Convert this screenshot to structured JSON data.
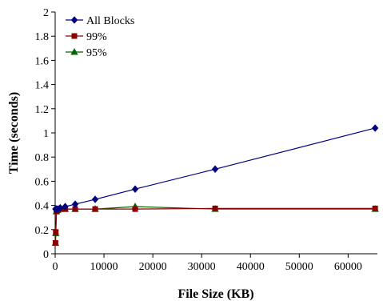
{
  "chart_data": {
    "type": "line",
    "xlabel": "File Size (KB)",
    "ylabel": "Time (seconds)",
    "xlim": [
      0,
      66000
    ],
    "ylim": [
      0,
      2
    ],
    "xticks": [
      "0",
      "10000",
      "20000",
      "30000",
      "40000",
      "50000",
      "60000"
    ],
    "xtick_values": [
      0,
      10000,
      20000,
      30000,
      40000,
      50000,
      60000
    ],
    "yticks": [
      "0",
      "0.2",
      "0.4",
      "0.6",
      "0.8",
      "1",
      "1.2",
      "1.4",
      "1.6",
      "1.8",
      "2"
    ],
    "ytick_values": [
      0,
      0.2,
      0.4,
      0.6,
      0.8,
      1.0,
      1.2,
      1.4,
      1.6,
      1.8,
      2.0
    ],
    "grid": false,
    "legend_position": "top-left",
    "series": [
      {
        "name": "All Blocks",
        "color": "#000080",
        "marker": "diamond",
        "x": [
          64,
          128,
          256,
          512,
          1024,
          2048,
          4096,
          8192,
          16384,
          32768,
          65536
        ],
        "y": [
          0.37,
          0.37,
          0.37,
          0.37,
          0.38,
          0.39,
          0.41,
          0.45,
          0.535,
          0.7,
          1.04
        ]
      },
      {
        "name": "99%",
        "color": "#8B0000",
        "marker": "square",
        "x": [
          64,
          128,
          256,
          512,
          1024,
          2048,
          4096,
          8192,
          16384,
          32768,
          65536
        ],
        "y": [
          0.09,
          0.18,
          0.35,
          0.37,
          0.37,
          0.37,
          0.37,
          0.37,
          0.37,
          0.375,
          0.375
        ]
      },
      {
        "name": "95%",
        "color": "#006400",
        "marker": "triangle",
        "x": [
          64,
          128,
          256,
          512,
          1024,
          2048,
          4096,
          8192,
          16384,
          32768,
          65536
        ],
        "y": [
          0.09,
          0.17,
          0.35,
          0.36,
          0.37,
          0.37,
          0.37,
          0.37,
          0.39,
          0.37,
          0.37
        ]
      }
    ]
  }
}
